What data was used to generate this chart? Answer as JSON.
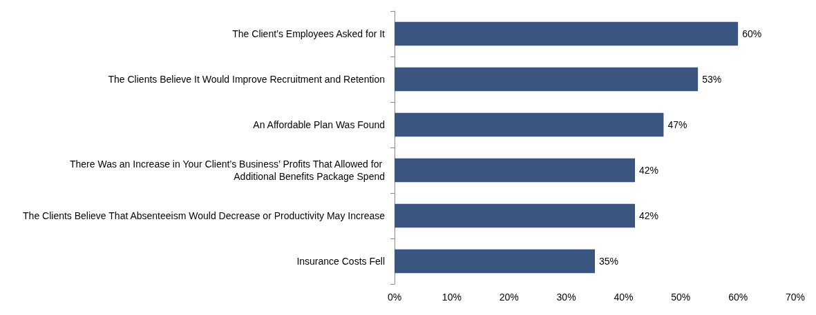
{
  "chart_data": {
    "type": "bar",
    "orientation": "horizontal",
    "categories": [
      "The Client’s Employees Asked for It",
      "The Clients Believe It Would Improve Recruitment and Retention",
      "An Affordable Plan Was Found",
      "There Was an Increase in Your Client’s Business’ Profits That Allowed for Additional Benefits Package Spend",
      "The Clients Believe That Absenteeism Would Decrease or Productivity May Increase",
      "Insurance Costs Fell"
    ],
    "values": [
      60,
      53,
      47,
      42,
      42,
      35
    ],
    "value_labels": [
      "60%",
      "53%",
      "47%",
      "42%",
      "42%",
      "35%"
    ],
    "color": "#3a5580",
    "xlim": [
      0,
      70
    ],
    "xticks": [
      {
        "value": 0,
        "label": "0%"
      },
      {
        "value": 10,
        "label": "10%"
      },
      {
        "value": 20,
        "label": "20%"
      },
      {
        "value": 30,
        "label": "30%"
      },
      {
        "value": 40,
        "label": "40%"
      },
      {
        "value": 50,
        "label": "50%"
      },
      {
        "value": 60,
        "label": "60%"
      },
      {
        "value": 70,
        "label": "70%"
      }
    ],
    "grid": false
  }
}
